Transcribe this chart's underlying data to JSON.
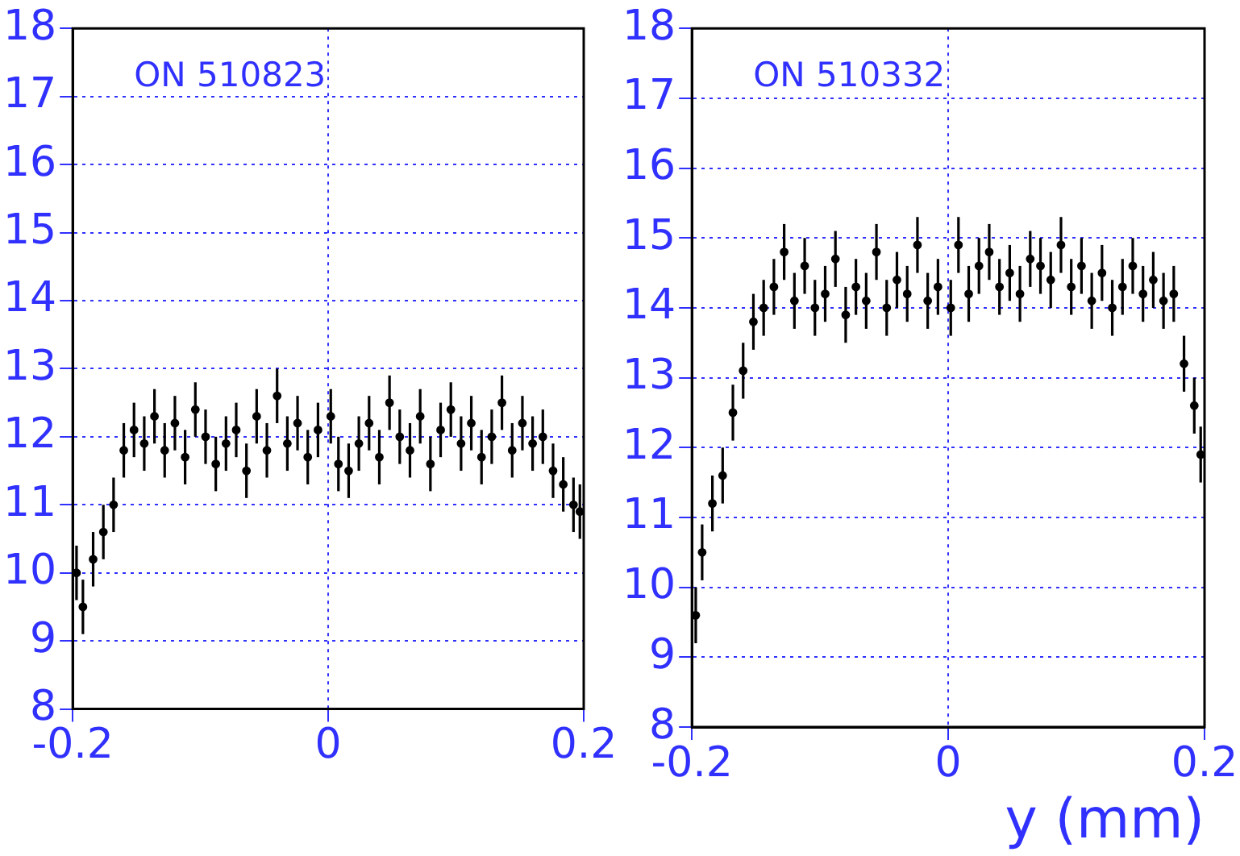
{
  "chart_data": [
    {
      "type": "scatter",
      "annotations": [
        "ON 510823"
      ],
      "color": "#000000",
      "marker": "circle",
      "grid": true,
      "x": [
        -0.197,
        -0.192,
        -0.184,
        -0.176,
        -0.168,
        -0.16,
        -0.152,
        -0.144,
        -0.136,
        -0.128,
        -0.12,
        -0.112,
        -0.104,
        -0.096,
        -0.088,
        -0.08,
        -0.072,
        -0.064,
        -0.056,
        -0.048,
        -0.04,
        -0.032,
        -0.024,
        -0.016,
        -0.008,
        0.002,
        0.008,
        0.016,
        0.024,
        0.032,
        0.04,
        0.048,
        0.056,
        0.064,
        0.072,
        0.08,
        0.088,
        0.096,
        0.104,
        0.112,
        0.12,
        0.128,
        0.136,
        0.144,
        0.152,
        0.16,
        0.168,
        0.176,
        0.184,
        0.192,
        0.197
      ],
      "values": [
        10.0,
        9.5,
        10.2,
        10.6,
        11.0,
        11.8,
        12.1,
        11.9,
        12.3,
        11.8,
        12.2,
        11.7,
        12.4,
        12.0,
        11.6,
        11.9,
        12.1,
        11.5,
        12.3,
        11.8,
        12.6,
        11.9,
        12.2,
        11.7,
        12.1,
        12.3,
        11.6,
        11.5,
        11.9,
        12.2,
        11.7,
        12.5,
        12.0,
        11.8,
        12.3,
        11.6,
        12.1,
        12.4,
        11.9,
        12.2,
        11.7,
        12.0,
        12.5,
        11.8,
        12.2,
        11.9,
        12.0,
        11.5,
        11.3,
        11.0,
        10.9
      ],
      "errors": [
        0.4,
        0.4,
        0.4,
        0.4,
        0.4,
        0.4,
        0.4,
        0.4,
        0.4,
        0.4,
        0.4,
        0.4,
        0.4,
        0.4,
        0.4,
        0.4,
        0.4,
        0.4,
        0.4,
        0.4,
        0.4,
        0.4,
        0.4,
        0.4,
        0.4,
        0.4,
        0.4,
        0.4,
        0.4,
        0.4,
        0.4,
        0.4,
        0.4,
        0.4,
        0.4,
        0.4,
        0.4,
        0.4,
        0.4,
        0.4,
        0.4,
        0.4,
        0.4,
        0.4,
        0.4,
        0.4,
        0.4,
        0.4,
        0.4,
        0.4,
        0.4
      ],
      "xlim": [
        -0.2,
        0.2
      ],
      "xticks": [
        -0.2,
        0,
        0.2
      ],
      "ylim": [
        8,
        18
      ],
      "yticks": [
        8,
        9,
        10,
        11,
        12,
        13,
        14,
        15,
        16,
        17,
        18
      ]
    },
    {
      "type": "scatter",
      "annotations": [
        "ON 510332"
      ],
      "xlabel": "y (mm)",
      "color": "#000000",
      "marker": "circle",
      "grid": true,
      "x": [
        -0.197,
        -0.192,
        -0.184,
        -0.176,
        -0.168,
        -0.16,
        -0.152,
        -0.144,
        -0.136,
        -0.128,
        -0.12,
        -0.112,
        -0.104,
        -0.096,
        -0.088,
        -0.08,
        -0.072,
        -0.064,
        -0.056,
        -0.048,
        -0.04,
        -0.032,
        -0.024,
        -0.016,
        -0.008,
        0.002,
        0.008,
        0.016,
        0.024,
        0.032,
        0.04,
        0.048,
        0.056,
        0.064,
        0.072,
        0.08,
        0.088,
        0.096,
        0.104,
        0.112,
        0.12,
        0.128,
        0.136,
        0.144,
        0.152,
        0.16,
        0.168,
        0.176,
        0.184,
        0.192,
        0.197
      ],
      "values": [
        9.6,
        10.5,
        11.2,
        11.6,
        12.5,
        13.1,
        13.8,
        14.0,
        14.3,
        14.8,
        14.1,
        14.6,
        14.0,
        14.2,
        14.7,
        13.9,
        14.3,
        14.1,
        14.8,
        14.0,
        14.4,
        14.2,
        14.9,
        14.1,
        14.3,
        14.0,
        14.9,
        14.2,
        14.6,
        14.8,
        14.3,
        14.5,
        14.2,
        14.7,
        14.6,
        14.4,
        14.9,
        14.3,
        14.6,
        14.1,
        14.5,
        14.0,
        14.3,
        14.6,
        14.2,
        14.4,
        14.1,
        14.2,
        13.2,
        12.6,
        11.9
      ],
      "errors": [
        0.4,
        0.4,
        0.4,
        0.4,
        0.4,
        0.4,
        0.4,
        0.4,
        0.4,
        0.4,
        0.4,
        0.4,
        0.4,
        0.4,
        0.4,
        0.4,
        0.4,
        0.4,
        0.4,
        0.4,
        0.4,
        0.4,
        0.4,
        0.4,
        0.4,
        0.4,
        0.4,
        0.4,
        0.4,
        0.4,
        0.4,
        0.4,
        0.4,
        0.4,
        0.4,
        0.4,
        0.4,
        0.4,
        0.4,
        0.4,
        0.4,
        0.4,
        0.4,
        0.4,
        0.4,
        0.4,
        0.4,
        0.4,
        0.4,
        0.4,
        0.4
      ],
      "xlim": [
        -0.2,
        0.2
      ],
      "xticks": [
        -0.2,
        0,
        0.2
      ],
      "ylim": [
        8,
        18
      ],
      "yticks": [
        8,
        9,
        10,
        11,
        12,
        13,
        14,
        15,
        16,
        17,
        18
      ]
    }
  ]
}
